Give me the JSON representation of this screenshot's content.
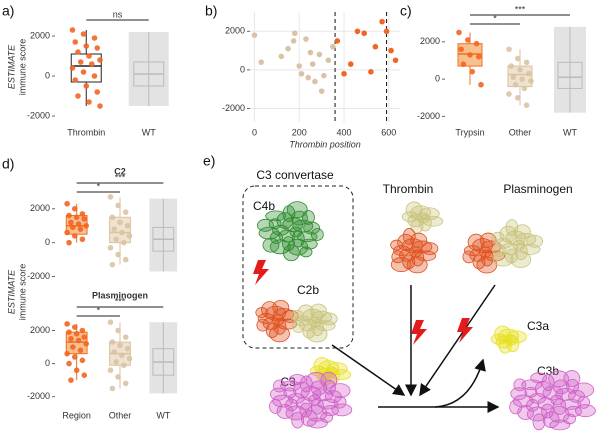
{
  "chart_data": [
    {
      "type": "box",
      "panel": "a)",
      "ylabel": [
        "ESTIMATE",
        "immune score"
      ],
      "categories": [
        "Thrombin",
        "WT"
      ],
      "boxes": [
        [
          -1500,
          -300,
          500,
          1100,
          2300
        ],
        [
          -1500,
          -500,
          100,
          700,
          2200
        ]
      ],
      "box_colors": [
        "#222222",
        "#bbbbbb"
      ],
      "box_fills": [
        "#ffffff",
        "none"
      ],
      "point_colors": [
        "#f26522",
        "#cccccc"
      ],
      "points": [
        [
          2300,
          2100,
          1900,
          1700,
          1500,
          1400,
          1200,
          1000,
          800,
          700,
          600,
          400,
          200,
          0,
          -200,
          -500,
          -800,
          -1000,
          -1300,
          -1500
        ],
        []
      ],
      "comparisons": [
        {
          "groups": [
            0,
            1
          ],
          "label": "ns"
        }
      ],
      "ylim": [
        -2300,
        3200
      ],
      "yticks": [
        -2000,
        0,
        2000
      ]
    },
    {
      "type": "scatter",
      "panel": "b)",
      "xlabel": "Thrombin position",
      "series": [
        {
          "color": "#d9c3a5",
          "x": [
            0,
            30,
            120,
            150,
            175,
            180,
            200,
            210,
            230,
            240,
            250,
            260,
            270,
            290,
            300,
            310,
            330,
            350
          ],
          "values": [
            1800,
            400,
            700,
            1100,
            1500,
            1900,
            200,
            -200,
            1600,
            -400,
            900,
            300,
            -600,
            800,
            -1100,
            -300,
            500,
            1200
          ]
        },
        {
          "color": "#f26522",
          "x": [
            370,
            400,
            430,
            460,
            490,
            520,
            540,
            570,
            590,
            610,
            630
          ],
          "values": [
            1500,
            -200,
            300,
            2000,
            1900,
            -100,
            1200,
            2500,
            2000,
            1000,
            500
          ]
        }
      ],
      "vlines": [
        360,
        590
      ],
      "grid": true,
      "xlim": [
        -20,
        650
      ],
      "xticks": [
        0,
        200,
        400,
        600
      ],
      "ylim": [
        -2700,
        3000
      ],
      "yticks": [
        -2000,
        0,
        2000
      ]
    },
    {
      "type": "box",
      "panel": "c)",
      "categories": [
        "Trypsin",
        "Other",
        "WT"
      ],
      "boxes": [
        [
          -300,
          700,
          1350,
          1900,
          2500
        ],
        [
          -1400,
          -400,
          250,
          700,
          1600
        ],
        [
          -1800,
          -500,
          100,
          900,
          2800
        ]
      ],
      "box_colors": [
        "#f07020",
        "#d8c2a0",
        "#bbbbbb"
      ],
      "box_fills": [
        "#f9c08f",
        "#efe2cf",
        "none"
      ],
      "point_colors": [
        "#f26522",
        "#d9c3a5",
        "#cccccc"
      ],
      "points": [
        [
          2500,
          2100,
          1900,
          1600,
          1300,
          1200,
          800,
          400,
          -300
        ],
        [
          1600,
          1100,
          900,
          700,
          500,
          300,
          100,
          0,
          -100,
          -300,
          -500,
          -800,
          -1000,
          -1400
        ],
        []
      ],
      "comparisons": [
        {
          "groups": [
            0,
            1
          ],
          "label": "*"
        },
        {
          "groups": [
            0,
            2
          ],
          "label": "***"
        }
      ],
      "ylim": [
        -2300,
        3600
      ],
      "yticks": [
        -2000,
        0,
        2000
      ]
    },
    {
      "type": "box",
      "panel": "d)",
      "title": "C2",
      "ylabel": [
        "ESTIMATE",
        "immune score"
      ],
      "boxes": [
        [
          0,
          500,
          1000,
          1600,
          2300
        ],
        [
          -1300,
          0,
          600,
          1500,
          2700
        ],
        [
          -1700,
          -500,
          200,
          900,
          2600
        ]
      ],
      "box_colors": [
        "#f07020",
        "#d8c2a0",
        "#bbbbbb"
      ],
      "box_fills": [
        "#f9c08f",
        "#efe2cf",
        "none"
      ],
      "point_colors": [
        "#f26522",
        "#d9c3a5",
        "#cccccc"
      ],
      "points": [
        [
          2300,
          2000,
          1700,
          1600,
          1500,
          1400,
          1200,
          1100,
          1000,
          900,
          800,
          600,
          400,
          200,
          0
        ],
        [
          2700,
          2200,
          1800,
          1500,
          1200,
          1000,
          800,
          600,
          400,
          200,
          0,
          -300,
          -700,
          -1000,
          -1300
        ],
        []
      ],
      "comparisons": [
        {
          "groups": [
            0,
            1
          ],
          "label": "*"
        },
        {
          "groups": [
            0,
            2
          ],
          "label": "***"
        }
      ],
      "ylim": [
        -2500,
        3700
      ],
      "yticks": [
        -2000,
        0,
        2000
      ]
    },
    {
      "type": "box",
      "title": "Plasminogen",
      "categories": [
        "Region",
        "Other",
        "WT"
      ],
      "boxes": [
        [
          -1000,
          600,
          1300,
          1900,
          2400
        ],
        [
          -1500,
          -100,
          600,
          1300,
          2500
        ],
        [
          -1800,
          -700,
          100,
          900,
          2500
        ]
      ],
      "box_colors": [
        "#f07020",
        "#d8c2a0",
        "#bbbbbb"
      ],
      "box_fills": [
        "#f9c08f",
        "#efe2cf",
        "none"
      ],
      "point_colors": [
        "#f26522",
        "#d9c3a5",
        "#cccccc"
      ],
      "points": [
        [
          2400,
          2200,
          2000,
          1900,
          1800,
          1600,
          1500,
          1400,
          1200,
          1000,
          800,
          600,
          400,
          200,
          0,
          -400,
          -700,
          -1000
        ],
        [
          2500,
          2000,
          1600,
          1300,
          1100,
          900,
          700,
          500,
          300,
          100,
          -100,
          -400,
          -800,
          -1200,
          -1500
        ],
        []
      ],
      "comparisons": [
        {
          "groups": [
            0,
            1
          ],
          "label": "*"
        },
        {
          "groups": [
            0,
            2
          ],
          "label": "***"
        }
      ],
      "ylim": [
        -2500,
        3600
      ],
      "yticks": [
        -2000,
        0,
        2000
      ]
    }
  ],
  "diagram": {
    "panel": "e)",
    "group_title": "C3 convertase",
    "labels": {
      "c4b": "C4b",
      "c2b": "C2b",
      "thrombin": "Thrombin",
      "plasminogen": "Plasminogen",
      "c3a": "C3a",
      "c3": "C3",
      "c3b": "C3b"
    }
  }
}
